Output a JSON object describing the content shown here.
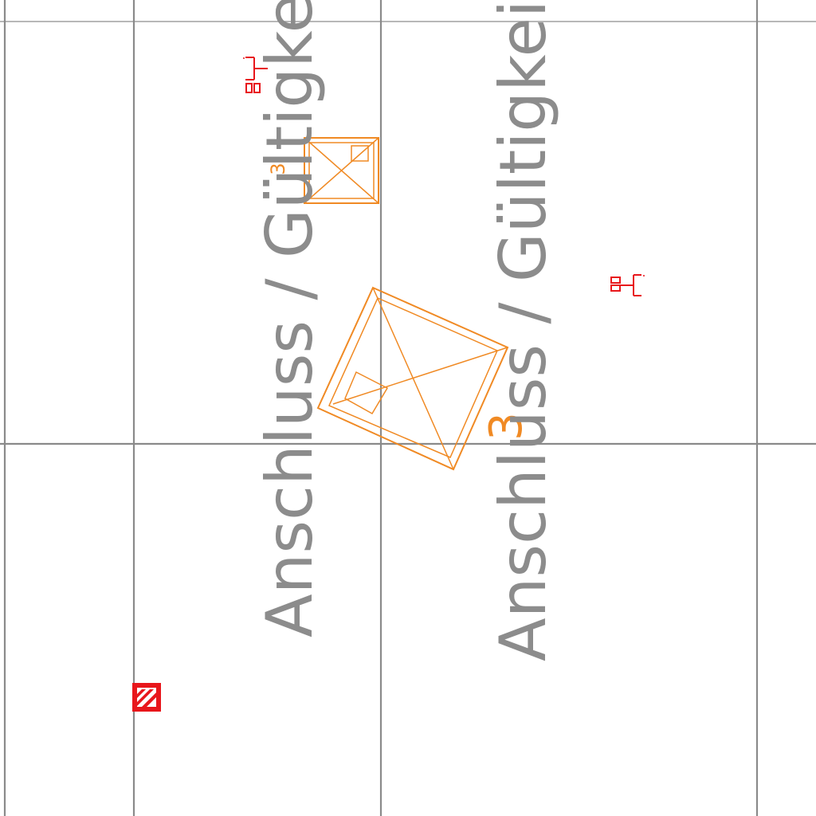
{
  "map": {
    "labels": [
      "Anschluss / Gültigkeit",
      "Anschluss / Gültigkeit"
    ],
    "numbers": {
      "small_house": "3",
      "large_house": "3"
    },
    "colors": {
      "grid": "#8a8a8a",
      "building_outline": "#f08a24",
      "connection_symbol": "#e8161b",
      "label_text": "#8c8c8c",
      "background": "#ffffff"
    },
    "icons": {
      "connection_1": "connection-terminal-icon",
      "connection_2": "connection-terminal-icon",
      "marker": "hatched-marker-icon"
    }
  }
}
